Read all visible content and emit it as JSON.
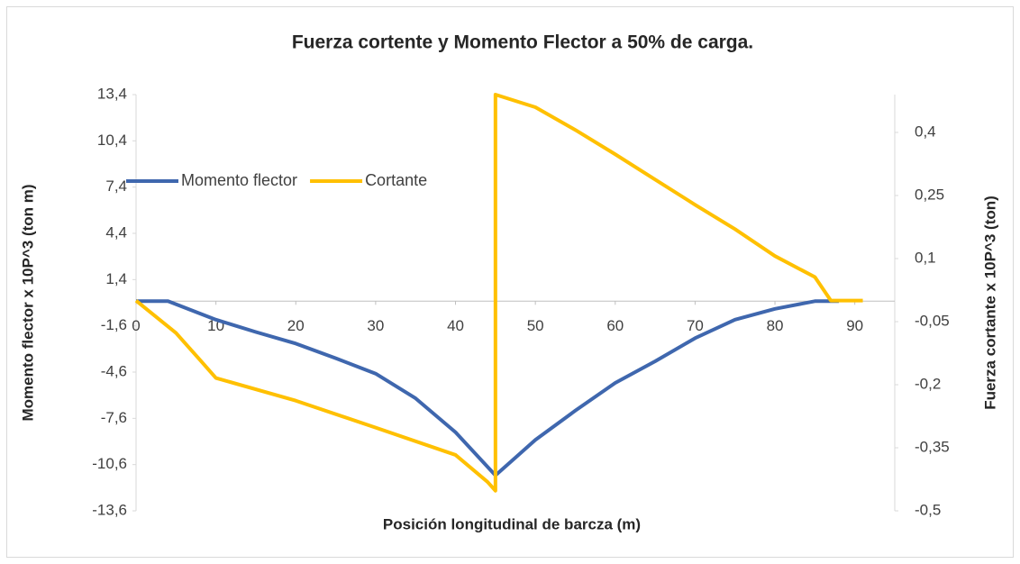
{
  "chart_data": {
    "type": "line",
    "title": "Fuerza cortente y Momento Flector a 50% de carga.",
    "xlabel": "Posición longitudinal  de barcza (m)",
    "ylabel": "Momento flector  x 10P^3 (ton m)",
    "y2label": "Fuerza cortante x 10P^3 (ton)",
    "xlim": [
      0,
      95
    ],
    "xticks": [
      0,
      10,
      20,
      30,
      40,
      50,
      60,
      70,
      80,
      90
    ],
    "ylim": [
      -13.6,
      13.4
    ],
    "yticks": [
      {
        "value": 13.4,
        "label": "13,4"
      },
      {
        "value": 10.4,
        "label": "10,4"
      },
      {
        "value": 7.4,
        "label": "7,4"
      },
      {
        "value": 4.4,
        "label": "4,4"
      },
      {
        "value": 1.4,
        "label": "1,4"
      },
      {
        "value": -1.6,
        "label": "-1,6"
      },
      {
        "value": -4.6,
        "label": "-4,6"
      },
      {
        "value": -7.6,
        "label": "-7,6"
      },
      {
        "value": -10.6,
        "label": "-10,6"
      },
      {
        "value": -13.6,
        "label": "-13,6"
      }
    ],
    "y2lim": [
      -0.5,
      0.49
    ],
    "y2ticks": [
      {
        "value": 0.4,
        "label": "0,4"
      },
      {
        "value": 0.25,
        "label": "0,25"
      },
      {
        "value": 0.1,
        "label": "0,1"
      },
      {
        "value": -0.05,
        "label": "-0,05"
      },
      {
        "value": -0.2,
        "label": "-0,2"
      },
      {
        "value": -0.35,
        "label": "-0,35"
      },
      {
        "value": -0.5,
        "label": "-0,5"
      }
    ],
    "legend": "left",
    "series": [
      {
        "name": "Momento flector",
        "color": "#3f67ae",
        "x": [
          0,
          4,
          10,
          15,
          20,
          25,
          30,
          35,
          40,
          45,
          50,
          55,
          60,
          65,
          70,
          75,
          80,
          85,
          88
        ],
        "values": [
          0,
          0,
          -1.2,
          -2.0,
          -2.75,
          -3.7,
          -4.7,
          -6.3,
          -8.5,
          -11.3,
          -9.0,
          -7.1,
          -5.3,
          -3.9,
          -2.4,
          -1.2,
          -0.5,
          0,
          0
        ]
      },
      {
        "name": "Cortante",
        "color": "#ffc000",
        "axis": "y2",
        "x": [
          0,
          5,
          8,
          10,
          20,
          30,
          40,
          44,
          45,
          45,
          50,
          55,
          60,
          65,
          70,
          75,
          80,
          85,
          87,
          91
        ],
        "values": [
          0,
          -0.077,
          -0.141,
          -0.184,
          -0.238,
          -0.302,
          -0.367,
          -0.431,
          -0.452,
          0.49,
          0.46,
          0.406,
          0.348,
          0.288,
          0.228,
          0.17,
          0.106,
          0.056,
          0,
          0
        ]
      }
    ]
  }
}
